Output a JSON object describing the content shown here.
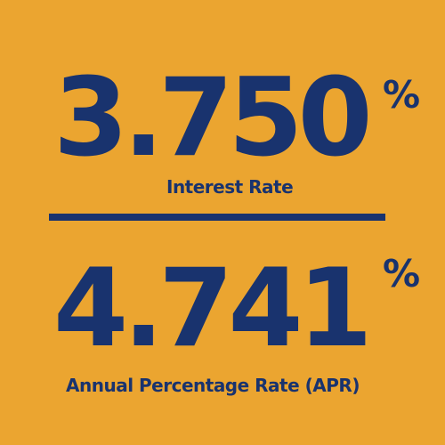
{
  "interest": {
    "value": "3.750",
    "percent_sign": "%",
    "label": "Interest Rate"
  },
  "apr": {
    "value": "4.741",
    "percent_sign": "%",
    "label": "Annual Percentage Rate (APR)"
  },
  "colors": {
    "background": "#EBA530",
    "text": "#19336E",
    "divider": "#19336E"
  }
}
